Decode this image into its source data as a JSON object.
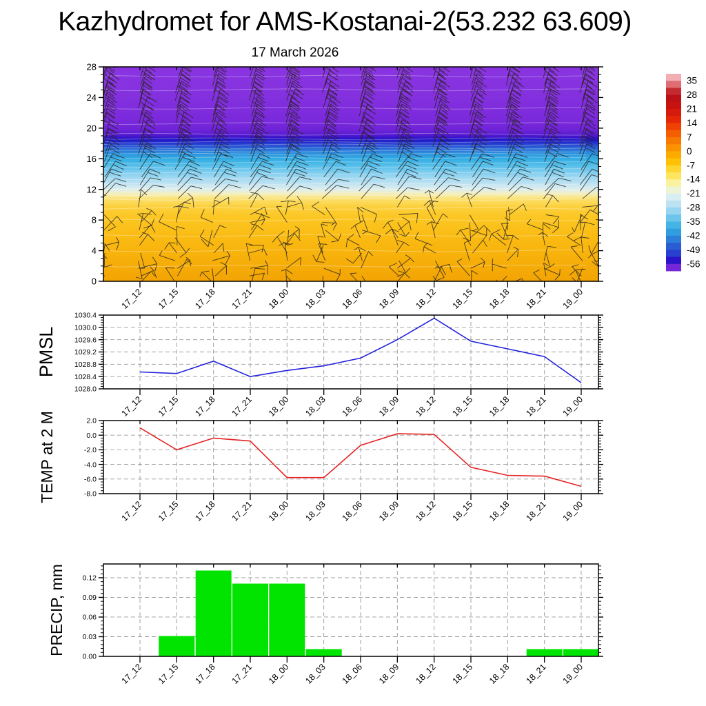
{
  "title": "Kazhydromet for AMS-Kostanai-2(53.232 63.609)",
  "subtitle": "17 March 2026",
  "time_labels": [
    "17_12",
    "17_15",
    "17_18",
    "17_21",
    "18_00",
    "18_03",
    "18_06",
    "18_09",
    "18_12",
    "18_15",
    "18_18",
    "18_21",
    "19_00"
  ],
  "chart_data": [
    {
      "id": "level_time_cross_section",
      "type": "heatmap",
      "categories": [
        "17_12",
        "17_15",
        "17_18",
        "17_21",
        "18_00",
        "18_03",
        "18_06",
        "18_09",
        "18_12",
        "18_15",
        "18_18",
        "18_21",
        "19_00"
      ],
      "ylim": [
        0,
        28
      ],
      "ytick_labels": [
        "0",
        "4",
        "8",
        "12",
        "16",
        "20",
        "24",
        "28"
      ],
      "wind_barbs_present": true,
      "barb_color": "#26221C",
      "colorbar_ticks": [
        "35",
        "28",
        "21",
        "14",
        "7",
        "0",
        "-7",
        "-14",
        "-21",
        "-28",
        "-35",
        "-42",
        "-49",
        "-56"
      ],
      "colorbar_colors_top_to_bottom": [
        "#F2AEB3",
        "#DE6E74",
        "#C62A31",
        "#BB1015",
        "#C81210",
        "#D61A0B",
        "#E52707",
        "#EF4103",
        "#F45E01",
        "#F87900",
        "#FB9200",
        "#FDAB00",
        "#FEC106",
        "#FFD530",
        "#FEE560",
        "#FBF2A0",
        "#EFF4D4",
        "#D9EEF2",
        "#BCE2F2",
        "#97D5F0",
        "#6CC6EC",
        "#44B3E6",
        "#2F9DDE",
        "#2C7ED8",
        "#2A5DD3",
        "#2740CF",
        "#2A14C9",
        "#7426D9"
      ],
      "field_color_profile": [
        {
          "level": 0,
          "color": "#F2A404"
        },
        {
          "level": 3,
          "color": "#F7B00A"
        },
        {
          "level": 6,
          "color": "#FABC14"
        },
        {
          "level": 8.5,
          "color": "#FCC724"
        },
        {
          "level": 9.8,
          "color": "#FCD140"
        },
        {
          "level": 10.6,
          "color": "#FBDE66"
        },
        {
          "level": 11.1,
          "color": "#F9E996"
        },
        {
          "level": 11.5,
          "color": "#F2EFC4"
        },
        {
          "level": 11.9,
          "color": "#E2EEE6"
        },
        {
          "level": 12.3,
          "color": "#D2EAF0"
        },
        {
          "level": 12.9,
          "color": "#B9E0F2"
        },
        {
          "level": 13.7,
          "color": "#98D6F1"
        },
        {
          "level": 14.5,
          "color": "#72C9EE"
        },
        {
          "level": 15.3,
          "color": "#4DBBE8"
        },
        {
          "level": 16.0,
          "color": "#32ACE3"
        },
        {
          "level": 16.6,
          "color": "#2C95DD"
        },
        {
          "level": 17.1,
          "color": "#2B79D9"
        },
        {
          "level": 17.5,
          "color": "#295ED5"
        },
        {
          "level": 17.9,
          "color": "#2742D1"
        },
        {
          "level": 18.2,
          "color": "#2328CC"
        },
        {
          "level": 18.5,
          "color": "#2017C8"
        },
        {
          "level": 18.8,
          "color": "#3B14CA"
        },
        {
          "level": 19.2,
          "color": "#5B1CD1"
        },
        {
          "level": 19.8,
          "color": "#6F24D7"
        },
        {
          "level": 21,
          "color": "#7A29DB"
        },
        {
          "level": 24,
          "color": "#8330DE"
        },
        {
          "level": 28,
          "color": "#8A35E1"
        }
      ],
      "contour_line_levels": [
        2,
        4,
        6,
        8,
        9.5,
        10.7,
        11.3,
        12,
        12.7,
        13.4,
        14.1,
        14.8,
        15.5,
        16.1,
        16.6,
        17.0,
        17.4,
        17.8,
        18.2,
        18.6,
        19.2,
        20.6,
        22.6,
        25,
        26.8
      ]
    },
    {
      "id": "pmsl",
      "type": "line",
      "ylabel": "PMSL",
      "line_color": "#2121DC",
      "categories": [
        "17_12",
        "17_15",
        "17_18",
        "17_21",
        "18_00",
        "18_03",
        "18_06",
        "18_09",
        "18_12",
        "18_15",
        "18_18",
        "18_21",
        "19_00"
      ],
      "values": [
        1028.55,
        1028.5,
        1028.9,
        1028.4,
        1028.6,
        1028.75,
        1029.0,
        1029.6,
        1030.3,
        1029.55,
        1029.3,
        1029.05,
        1028.2
      ],
      "ylim": [
        1028.0,
        1030.4
      ],
      "ytick_labels": [
        "1028.0",
        "1028.4",
        "1028.8",
        "1029.2",
        "1029.6",
        "1030.0",
        "1030.4"
      ]
    },
    {
      "id": "temp_2m",
      "type": "line",
      "ylabel": "TEMP at 2 M",
      "line_color": "#E62222",
      "categories": [
        "17_12",
        "17_15",
        "17_18",
        "17_21",
        "18_00",
        "18_03",
        "18_06",
        "18_09",
        "18_12",
        "18_15",
        "18_18",
        "18_21",
        "19_00"
      ],
      "values": [
        1.0,
        -2.0,
        -0.4,
        -0.8,
        -5.8,
        -5.8,
        -1.4,
        0.2,
        0.1,
        -4.4,
        -5.5,
        -5.6,
        -7.0
      ],
      "ylim": [
        -8.0,
        2.0
      ],
      "ytick_labels": [
        "-8.0",
        "-6.0",
        "-4.0",
        "-2.0",
        "0.0",
        "2.0"
      ]
    },
    {
      "id": "precip",
      "type": "bar",
      "ylabel": "PRECIP, mm",
      "bar_color": "#00E400",
      "categories": [
        "17_12",
        "17_15",
        "17_18",
        "17_21",
        "18_00",
        "18_03",
        "18_06",
        "18_09",
        "18_12",
        "18_15",
        "18_18",
        "18_21",
        "19_00"
      ],
      "values": [
        0,
        0.031,
        0.131,
        0.111,
        0.111,
        0.011,
        0,
        0,
        0,
        0,
        0,
        0.011,
        0.011
      ],
      "ylim": [
        0,
        0.141
      ],
      "ytick_labels": [
        "0.00",
        "0.03",
        "0.06",
        "0.09",
        "0.12"
      ]
    }
  ]
}
